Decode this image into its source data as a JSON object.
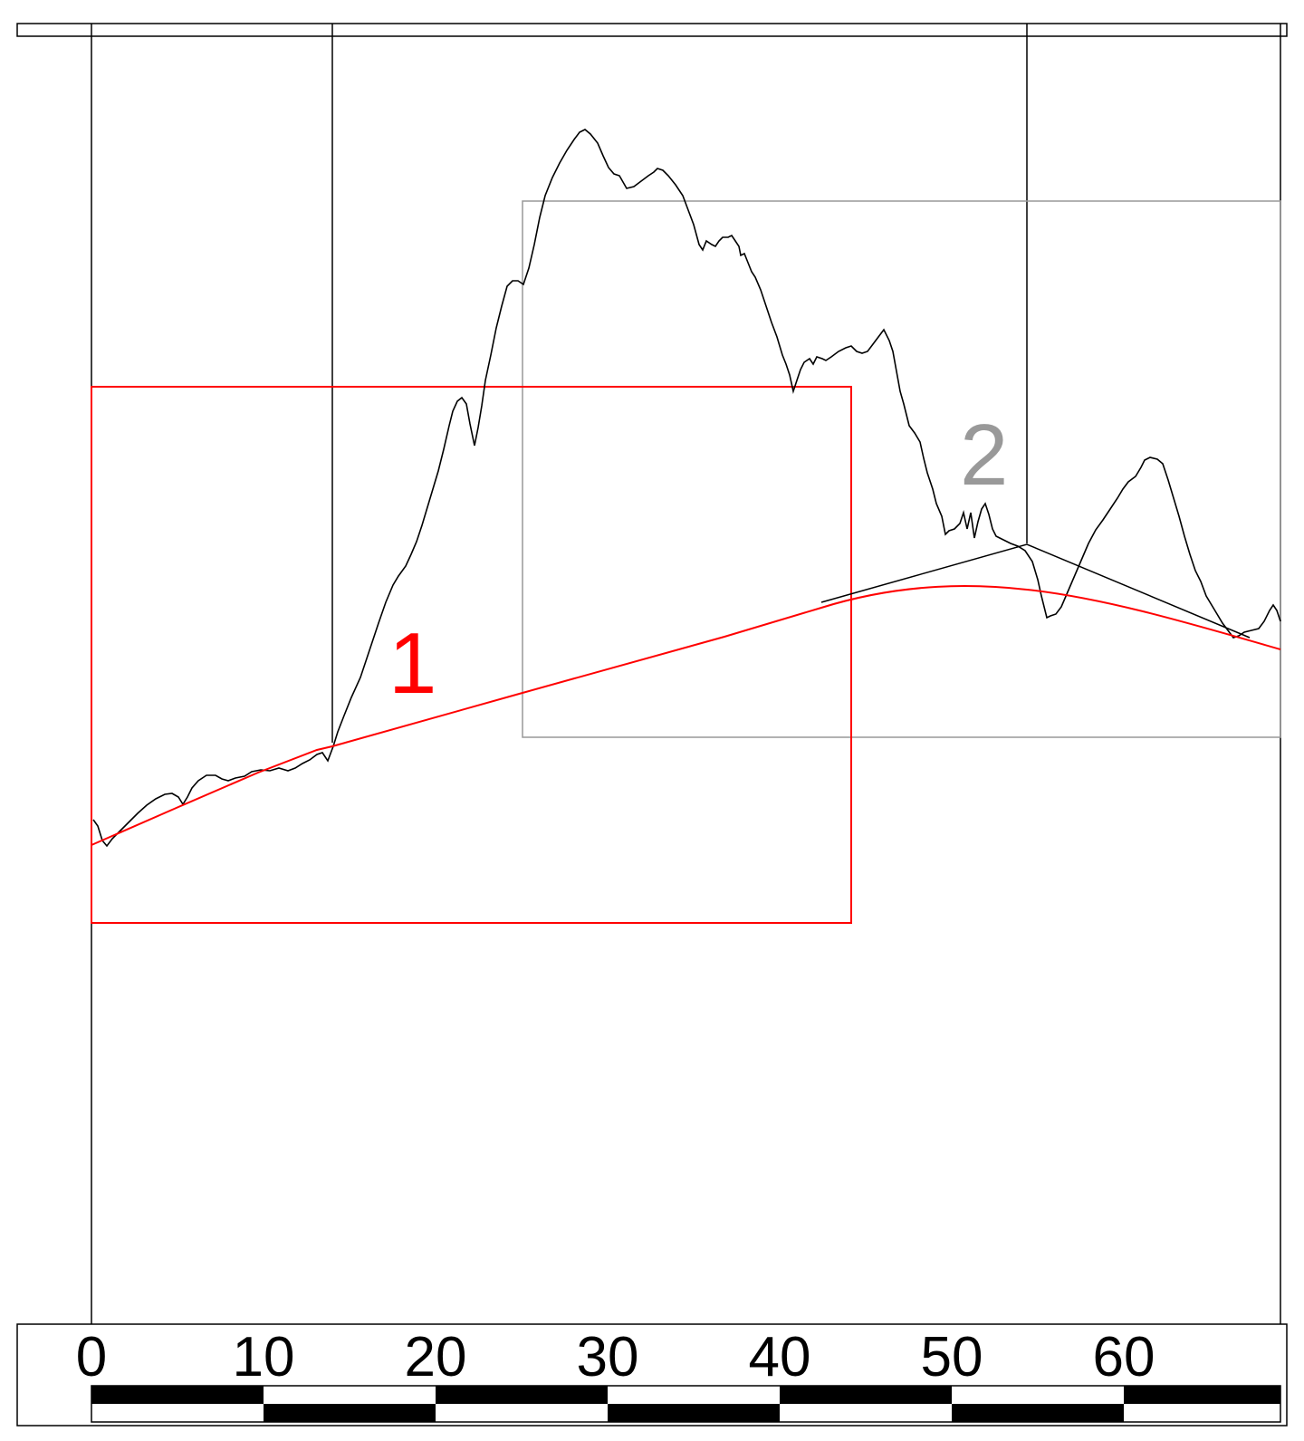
{
  "colors": {
    "profile": "#000000",
    "frame": "#000000",
    "box_1": "#ff0000",
    "box_2": "#999999",
    "curve": "#ff0000",
    "label_1": "#ff0000",
    "label_2": "#999999",
    "background": "#ffffff"
  },
  "labels": {
    "box_1": "1",
    "box_2": "2"
  },
  "scale_bar": {
    "ticks": [
      "0",
      "10",
      "20",
      "30",
      "40",
      "50",
      "60"
    ]
  }
}
